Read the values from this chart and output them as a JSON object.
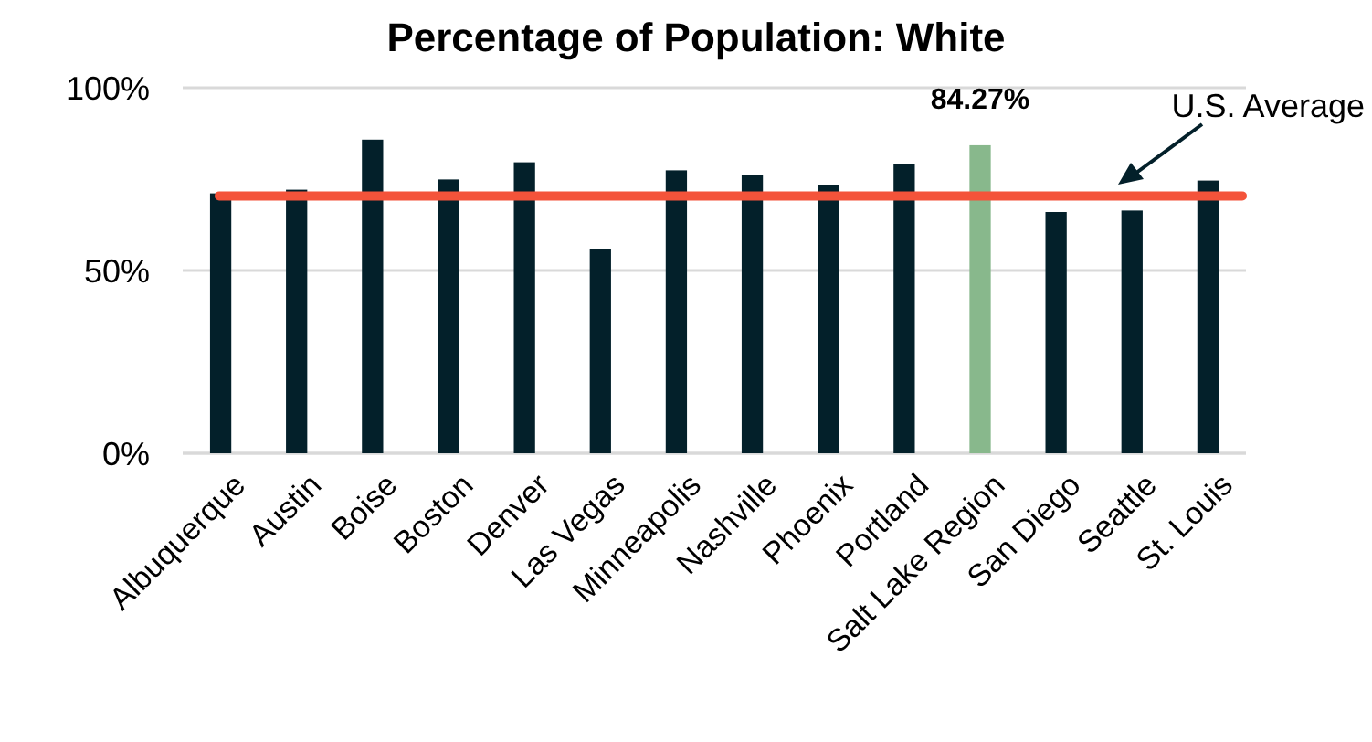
{
  "chart_data": {
    "type": "bar",
    "title": "Percentage of Population: White",
    "categories": [
      "Albuquerque",
      "Austin",
      "Boise",
      "Boston",
      "Denver",
      "Las Vegas",
      "Minneapolis",
      "Nashville",
      "Phoenix",
      "Portland",
      "Salt Lake Region",
      "San Diego",
      "Seattle",
      "St. Louis"
    ],
    "values": [
      71.1,
      72.1,
      85.8,
      74.9,
      79.6,
      55.9,
      77.4,
      76.2,
      73.4,
      79.1,
      84.27,
      66.0,
      66.4,
      74.6
    ],
    "colors": [
      "#03202a",
      "#03202a",
      "#03202a",
      "#03202a",
      "#03202a",
      "#03202a",
      "#03202a",
      "#03202a",
      "#03202a",
      "#03202a",
      "#88b88c",
      "#03202a",
      "#03202a",
      "#03202a"
    ],
    "value_labels": [
      null,
      null,
      null,
      null,
      null,
      null,
      null,
      null,
      null,
      null,
      "84.27%",
      null,
      null,
      null
    ],
    "ylim": [
      0,
      100
    ],
    "yticks": [
      {
        "value": 0,
        "label": "0%"
      },
      {
        "value": 50,
        "label": "50%"
      },
      {
        "value": 100,
        "label": "100%"
      }
    ],
    "grid": "y",
    "ref_lines": [
      {
        "axis": "y",
        "value": 70.4,
        "label": "U.S. Average",
        "color": "#f4533a"
      }
    ]
  }
}
